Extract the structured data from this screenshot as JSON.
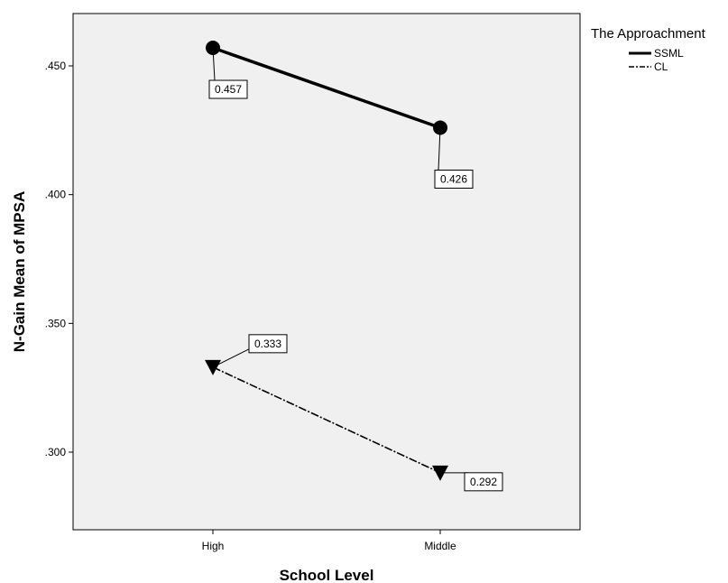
{
  "chart_data": {
    "type": "line",
    "categories": [
      "High",
      "Middle"
    ],
    "xlabel": "School Level",
    "ylabel": "N-Gain Mean of MPSA",
    "ylim": [
      0.27,
      0.47
    ],
    "yticks": [
      0.3,
      0.35,
      0.4,
      0.45
    ],
    "ytick_labels": [
      ".300",
      ".350",
      ".400",
      ".450"
    ],
    "grid": false,
    "legend": {
      "title": "The Approachment",
      "placement": "right-top"
    },
    "series": [
      {
        "name": "SSML",
        "values": [
          0.457,
          0.426
        ],
        "labels": [
          "0.457",
          "0.426"
        ],
        "marker": "circle",
        "line_style": "solid-thick",
        "color": "#000000"
      },
      {
        "name": "CL",
        "values": [
          0.333,
          0.292
        ],
        "labels": [
          "0.333",
          "0.292"
        ],
        "marker": "triangle-down",
        "line_style": "dash-dot",
        "color": "#000000"
      }
    ],
    "plot_background": "#f0f0f0"
  }
}
